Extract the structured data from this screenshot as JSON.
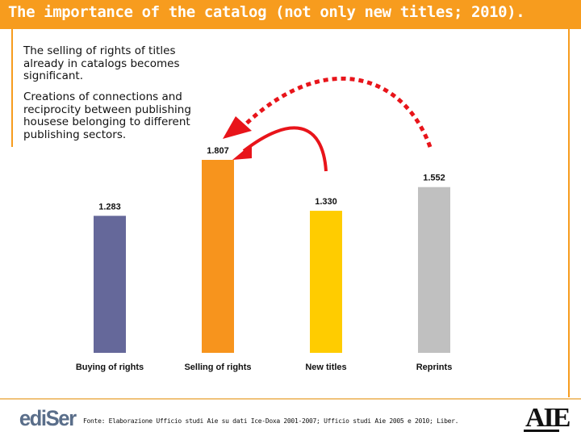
{
  "header": {
    "title": "The importance of the catalog (not only new titles; 2010)."
  },
  "notes": {
    "note1": "The selling of rights of titles already in catalogs becomes significant.",
    "note2": "Creations of connections and reciprocity between publishing housese belonging to different publishing sectors."
  },
  "footer": {
    "source": "Fonte: Elaborazione Ufficio studi Aie su dati Ice-Doxa 2001-2007; Ufficio studi Aie 2005 e 2010; Liber.",
    "logo_left": "ediSer",
    "logo_right": "AIE"
  },
  "colors": {
    "accent": "#f79c1e",
    "arrow": "#e8141a"
  },
  "chart_data": {
    "type": "bar",
    "categories": [
      "Buying of rights",
      "Selling of rights",
      "New titles",
      "Reprints"
    ],
    "values": [
      1283,
      1807,
      1330,
      1552
    ],
    "value_labels": [
      "1.283",
      "1.807",
      "1.330",
      "1.552"
    ],
    "colors": [
      "#65689a",
      "#f7941d",
      "#ffcc00",
      "#c0c0c0"
    ],
    "title": "",
    "xlabel": "",
    "ylabel": "",
    "ylim": [
      0,
      1807
    ],
    "grid": false,
    "legend": "none",
    "annotations": [
      {
        "type": "dashed-arrow",
        "from": "Reprints",
        "to": "Selling of rights"
      },
      {
        "type": "solid-arrow",
        "from": "New titles",
        "to": "Selling of rights"
      }
    ]
  }
}
